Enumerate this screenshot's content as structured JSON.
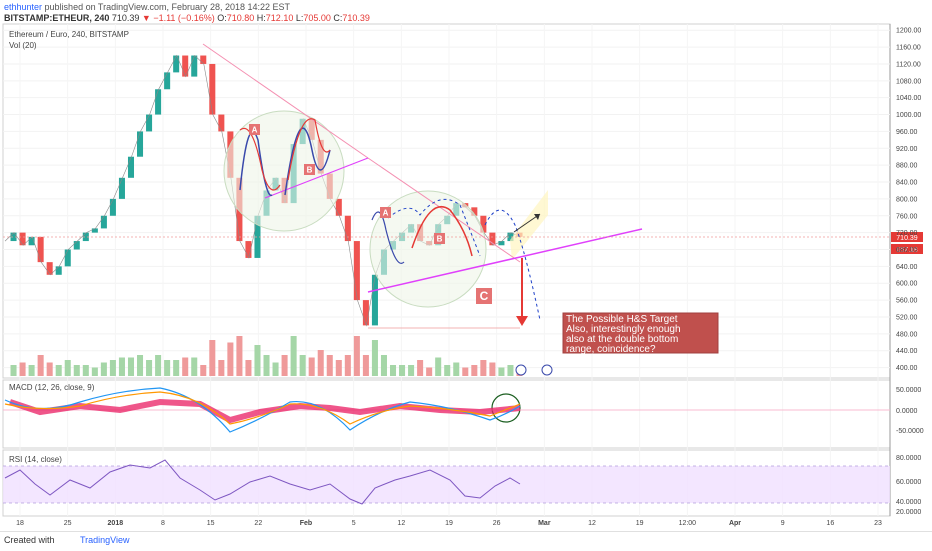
{
  "header": {
    "author": "ethhunter",
    "published_text": "published on TradingView.com, February 28, 2018 14:22 EST",
    "symbol": "BITSTAMP:ETHEUR, 240",
    "last": "710.39",
    "change": "▼ −1.11 (−0.16%)",
    "o_label": "O:",
    "o": "710.80",
    "h_label": "H:",
    "h": "712.10",
    "l_label": "L:",
    "l": "705.00",
    "c_label": "C:",
    "c": "710.39"
  },
  "price_pane": {
    "title": "Ethereum / Euro, 240, BITSTAMP",
    "vol_label": "Vol (20)",
    "price_tag": "710.39",
    "level_tag": "657.18"
  },
  "macd_pane": {
    "title": "MACD (12, 26, close, 9)",
    "ticks": [
      "50.0000",
      "0.0000",
      "-50.0000"
    ]
  },
  "rsi_pane": {
    "title": "RSI (14, close)",
    "ticks": [
      "80.0000",
      "60.0000",
      "40.0000",
      "20.0000"
    ]
  },
  "annotations": {
    "marker_a": "A",
    "marker_b": "B",
    "marker_c": "C",
    "note_lines": [
      "The Possible H&S Target",
      "Also, interestingly enough",
      "also at the double bottom",
      "range, coincidence?"
    ]
  },
  "colors": {
    "up": "#26a69a",
    "down": "#ef5350",
    "accent": "#2962ff",
    "trend_pink": "#e040fb",
    "note_bg": "#c0504d",
    "rsi_band": "#f0e0ff"
  },
  "footer": {
    "created_with": "Created with",
    "brand": "TradingView"
  },
  "chart_data": {
    "type": "line",
    "title": "Ethereum / Euro, 240, BITSTAMP",
    "x_ticks": [
      "18",
      "25",
      "2018",
      "8",
      "15",
      "22",
      "Feb",
      "5",
      "12",
      "19",
      "26",
      "Mar",
      "12",
      "19",
      "12:00",
      "Apr",
      "9",
      "16",
      "23"
    ],
    "y_ticks": [
      1200,
      1160,
      1120,
      1080,
      1040,
      1000,
      960,
      920,
      880,
      840,
      800,
      760,
      720,
      680,
      640,
      600,
      560,
      520,
      480,
      440,
      400
    ],
    "ylim": [
      380,
      1210
    ],
    "series": [
      {
        "values": [
          700,
          720,
          690,
          710,
          650,
          620,
          640,
          680,
          700,
          720,
          730,
          760,
          800,
          850,
          900,
          960,
          1000,
          1060,
          1100,
          1140,
          1090,
          1140,
          1120,
          1000,
          960,
          850,
          700,
          660,
          760,
          820,
          850,
          790,
          930,
          990,
          940,
          860,
          800,
          760,
          700,
          560,
          500,
          620,
          680,
          700,
          720,
          740,
          700,
          690,
          740,
          760,
          790,
          780,
          760,
          720,
          690,
          700,
          720,
          710
        ]
      }
    ]
  }
}
